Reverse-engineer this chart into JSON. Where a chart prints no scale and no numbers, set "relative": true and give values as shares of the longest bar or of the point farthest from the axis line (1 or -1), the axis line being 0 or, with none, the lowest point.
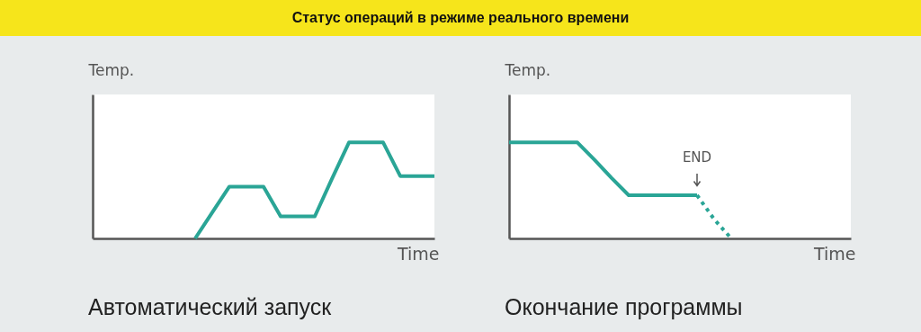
{
  "chart_data": [
    {
      "type": "other",
      "title": "Статус операций в режиме реального времени"
    },
    {
      "type": "line",
      "title": "Автоматический запуск",
      "xlabel": "Time",
      "ylabel": "Temp.",
      "relative": true,
      "categories": [
        null,
        null,
        null,
        null,
        null,
        null,
        null,
        null,
        null,
        null,
        null,
        null,
        null,
        null,
        null,
        null,
        null,
        null,
        null,
        null,
        null
      ],
      "series": [
        {
          "color": "#2aa596",
          "line_style": "solid",
          "values": [
            null,
            null,
            null,
            null,
            null,
            null,
            0,
            0.27,
            0.54,
            0.54,
            0.54,
            0.23,
            0.23,
            0.23,
            0.62,
            1,
            1,
            1,
            0.65,
            0.65,
            0.65
          ]
        }
      ]
    },
    {
      "type": "line",
      "title": "Окончание программы",
      "xlabel": "Time",
      "ylabel": "Temp.",
      "relative": true,
      "annotations": [
        "END"
      ],
      "categories": [
        null,
        null,
        null,
        null,
        null,
        null,
        null,
        null,
        null,
        null,
        null,
        null,
        null,
        null,
        null,
        null,
        null,
        null,
        null,
        null,
        null
      ],
      "series": [
        {
          "color": "#2aa596",
          "line_style": "solid",
          "values": [
            1,
            1,
            1,
            1,
            1,
            0.82,
            0.63,
            0.45,
            0.45,
            0.45,
            0.45,
            0.45,
            null,
            null,
            null,
            null,
            null,
            null,
            null,
            null,
            null
          ]
        },
        {
          "color": "#2aa596",
          "line_style": "dotted",
          "values": [
            null,
            null,
            null,
            null,
            null,
            null,
            null,
            null,
            null,
            null,
            null,
            0.45,
            0.2,
            0,
            null,
            null,
            null,
            null,
            null,
            null,
            null
          ]
        }
      ]
    }
  ]
}
